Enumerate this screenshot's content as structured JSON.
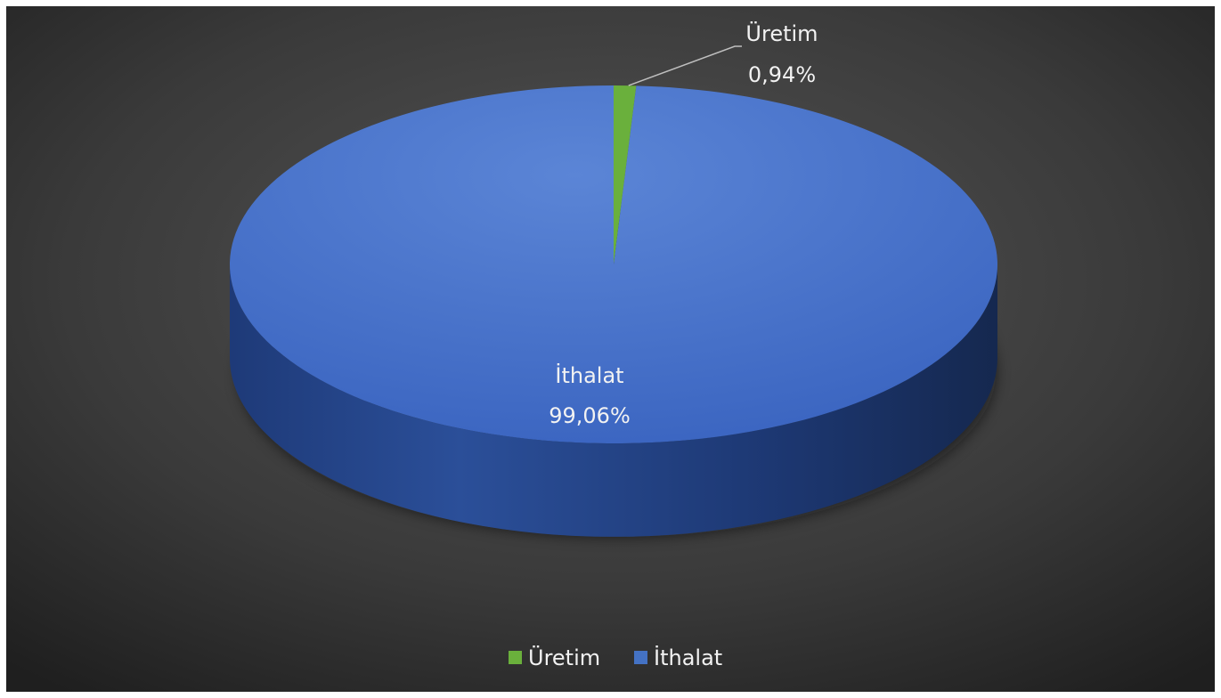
{
  "chart_data": {
    "type": "pie",
    "categories": [
      "Üretim",
      "İthalat"
    ],
    "values": [
      0.94,
      99.06
    ],
    "value_labels": [
      "0,94%",
      "99,06%"
    ],
    "colors": [
      "#6ab03c",
      "#4472c4"
    ],
    "style": "3d",
    "legend": {
      "position": "bottom",
      "items": [
        "Üretim",
        "İthalat"
      ]
    },
    "background_color": "#2b2b2b"
  }
}
